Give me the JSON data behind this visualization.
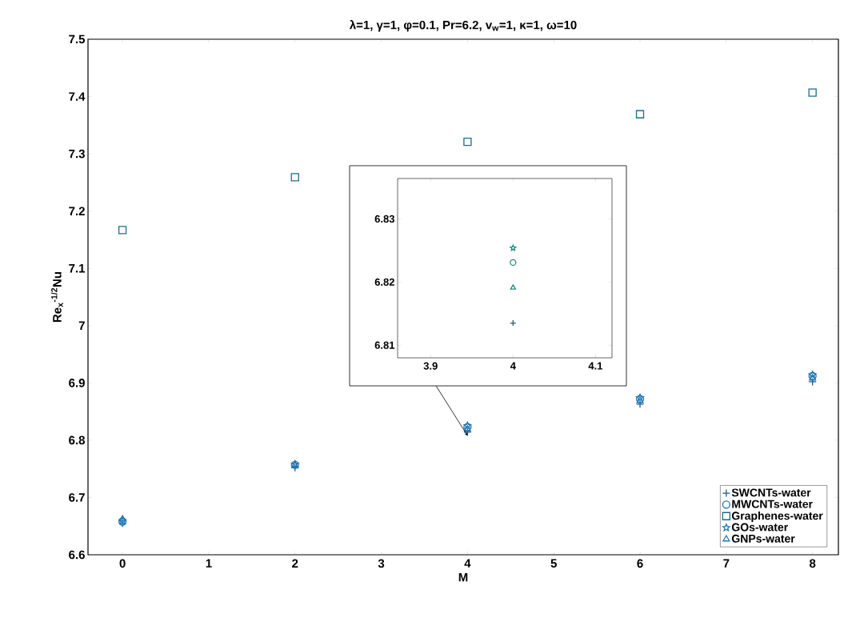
{
  "chart_data": [
    {
      "type": "scatter",
      "title": "λ=1, γ=1, φ=0.1, Pr=6.2, v$_{w}$=1, κ=1, ω=10",
      "xlabel": "M",
      "ylabel": "Re$_{x}$$^{-1/2}$Nu",
      "x": [
        0,
        2,
        4,
        6,
        8
      ],
      "xlim": [
        -0.4,
        8.3
      ],
      "ylim": [
        6.6,
        7.5
      ],
      "xticks": [
        0,
        1,
        2,
        3,
        4,
        5,
        6,
        7,
        8
      ],
      "yticks": [
        6.6,
        6.7,
        6.8,
        6.9,
        7,
        7.1,
        7.2,
        7.3,
        7.4,
        7.5
      ],
      "legend": "bottom right",
      "grid": false,
      "series": [
        {
          "name": "SWCNTs-water",
          "color": "#1b5e8c",
          "marker": "cross",
          "values": [
            6.655,
            6.752,
            6.814,
            6.863,
            6.902
          ]
        },
        {
          "name": "MWCNTs-water",
          "color": "#1f77b4",
          "marker": "circle",
          "values": [
            6.658,
            6.757,
            6.823,
            6.872,
            6.912
          ]
        },
        {
          "name": "Graphenes-water",
          "color": "#1a6e8a",
          "marker": "square",
          "values": [
            7.167,
            7.259,
            7.321,
            7.369,
            7.407
          ]
        },
        {
          "name": "GOs-water",
          "color": "#1f77b4",
          "marker": "star",
          "values": [
            6.659,
            6.758,
            6.825,
            6.874,
            6.914
          ]
        },
        {
          "name": "GNPs-water",
          "color": "#1f77b4",
          "marker": "triangle",
          "values": [
            6.662,
            6.756,
            6.819,
            6.869,
            6.908
          ]
        }
      ]
    },
    {
      "type": "scatter",
      "x": [
        4
      ],
      "xlim": [
        3.86,
        4.12
      ],
      "ylim": [
        6.808,
        6.8364
      ],
      "xticks": [
        3.9,
        4,
        4.1
      ],
      "yticks": [
        6.81,
        6.82,
        6.83
      ],
      "grid": false,
      "series": [
        {
          "color": "#2f5f5f",
          "marker": "cross",
          "values": [
            6.8135
          ]
        },
        {
          "color": "#1e8a7a",
          "marker": "circle",
          "values": [
            6.8231
          ]
        },
        {
          "color": "#1e8a7a",
          "marker": "star",
          "values": [
            6.8254
          ]
        },
        {
          "color": "#1e8a7a",
          "marker": "triangle",
          "values": [
            6.8191
          ]
        }
      ]
    }
  ]
}
